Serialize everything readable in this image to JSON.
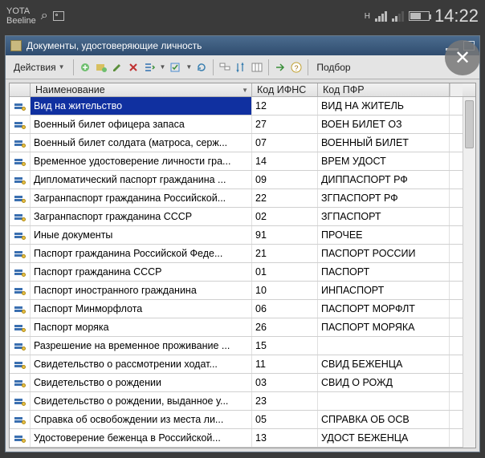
{
  "status": {
    "carrier1": "YOTA",
    "carrier2": "Beeline",
    "net_indicator": "H",
    "clock": "14:22"
  },
  "window": {
    "title": "Документы, удостоверяющие личность"
  },
  "toolbar": {
    "actions_label": "Действия",
    "podbor_label": "Подбор"
  },
  "grid": {
    "headers": {
      "name": "Наименование",
      "ifns": "Код ИФНС",
      "pfr": "Код ПФР"
    },
    "rows": [
      {
        "name": "Вид на жительство",
        "ifns": "12",
        "pfr": "ВИД НА ЖИТЕЛЬ",
        "selected": true
      },
      {
        "name": "Военный билет офицера запаса",
        "ifns": "27",
        "pfr": "ВОЕН БИЛЕТ ОЗ"
      },
      {
        "name": "Военный билет солдата (матроса, серж...",
        "ifns": "07",
        "pfr": "ВОЕННЫЙ БИЛЕТ"
      },
      {
        "name": "Временное удостоверение личности гра...",
        "ifns": "14",
        "pfr": "ВРЕМ УДОСТ"
      },
      {
        "name": "Дипломатический паспорт гражданина ...",
        "ifns": "09",
        "pfr": "ДИППАСПОРТ РФ"
      },
      {
        "name": "Загранпаспорт гражданина Российской...",
        "ifns": "22",
        "pfr": "ЗГПАСПОРТ РФ"
      },
      {
        "name": "Загранпаспорт гражданина СССР",
        "ifns": "02",
        "pfr": "ЗГПАСПОРТ"
      },
      {
        "name": "Иные документы",
        "ifns": "91",
        "pfr": "ПРОЧЕЕ"
      },
      {
        "name": "Паспорт гражданина Российской Феде...",
        "ifns": "21",
        "pfr": "ПАСПОРТ РОССИИ"
      },
      {
        "name": "Паспорт гражданина СССР",
        "ifns": "01",
        "pfr": "ПАСПОРТ"
      },
      {
        "name": "Паспорт иностранного гражданина",
        "ifns": "10",
        "pfr": "ИНПАСПОРТ"
      },
      {
        "name": "Паспорт Минморфлота",
        "ifns": "06",
        "pfr": "ПАСПОРТ МОРФЛТ"
      },
      {
        "name": "Паспорт моряка",
        "ifns": "26",
        "pfr": "ПАСПОРТ МОРЯКА"
      },
      {
        "name": "Разрешение на временное проживание ...",
        "ifns": "15",
        "pfr": ""
      },
      {
        "name": "Свидетельство о рассмотрении ходат...",
        "ifns": "11",
        "pfr": "СВИД БЕЖЕНЦА"
      },
      {
        "name": "Свидетельство о рождении",
        "ifns": "03",
        "pfr": "СВИД О РОЖД"
      },
      {
        "name": "Свидетельство о рождении, выданное у...",
        "ifns": "23",
        "pfr": ""
      },
      {
        "name": "Справка об освобождении из места ли...",
        "ifns": "05",
        "pfr": "СПРАВКА ОБ ОСВ"
      },
      {
        "name": "Удостоверение беженца в Российской...",
        "ifns": "13",
        "pfr": "УДОСТ БЕЖЕНЦА"
      }
    ]
  }
}
